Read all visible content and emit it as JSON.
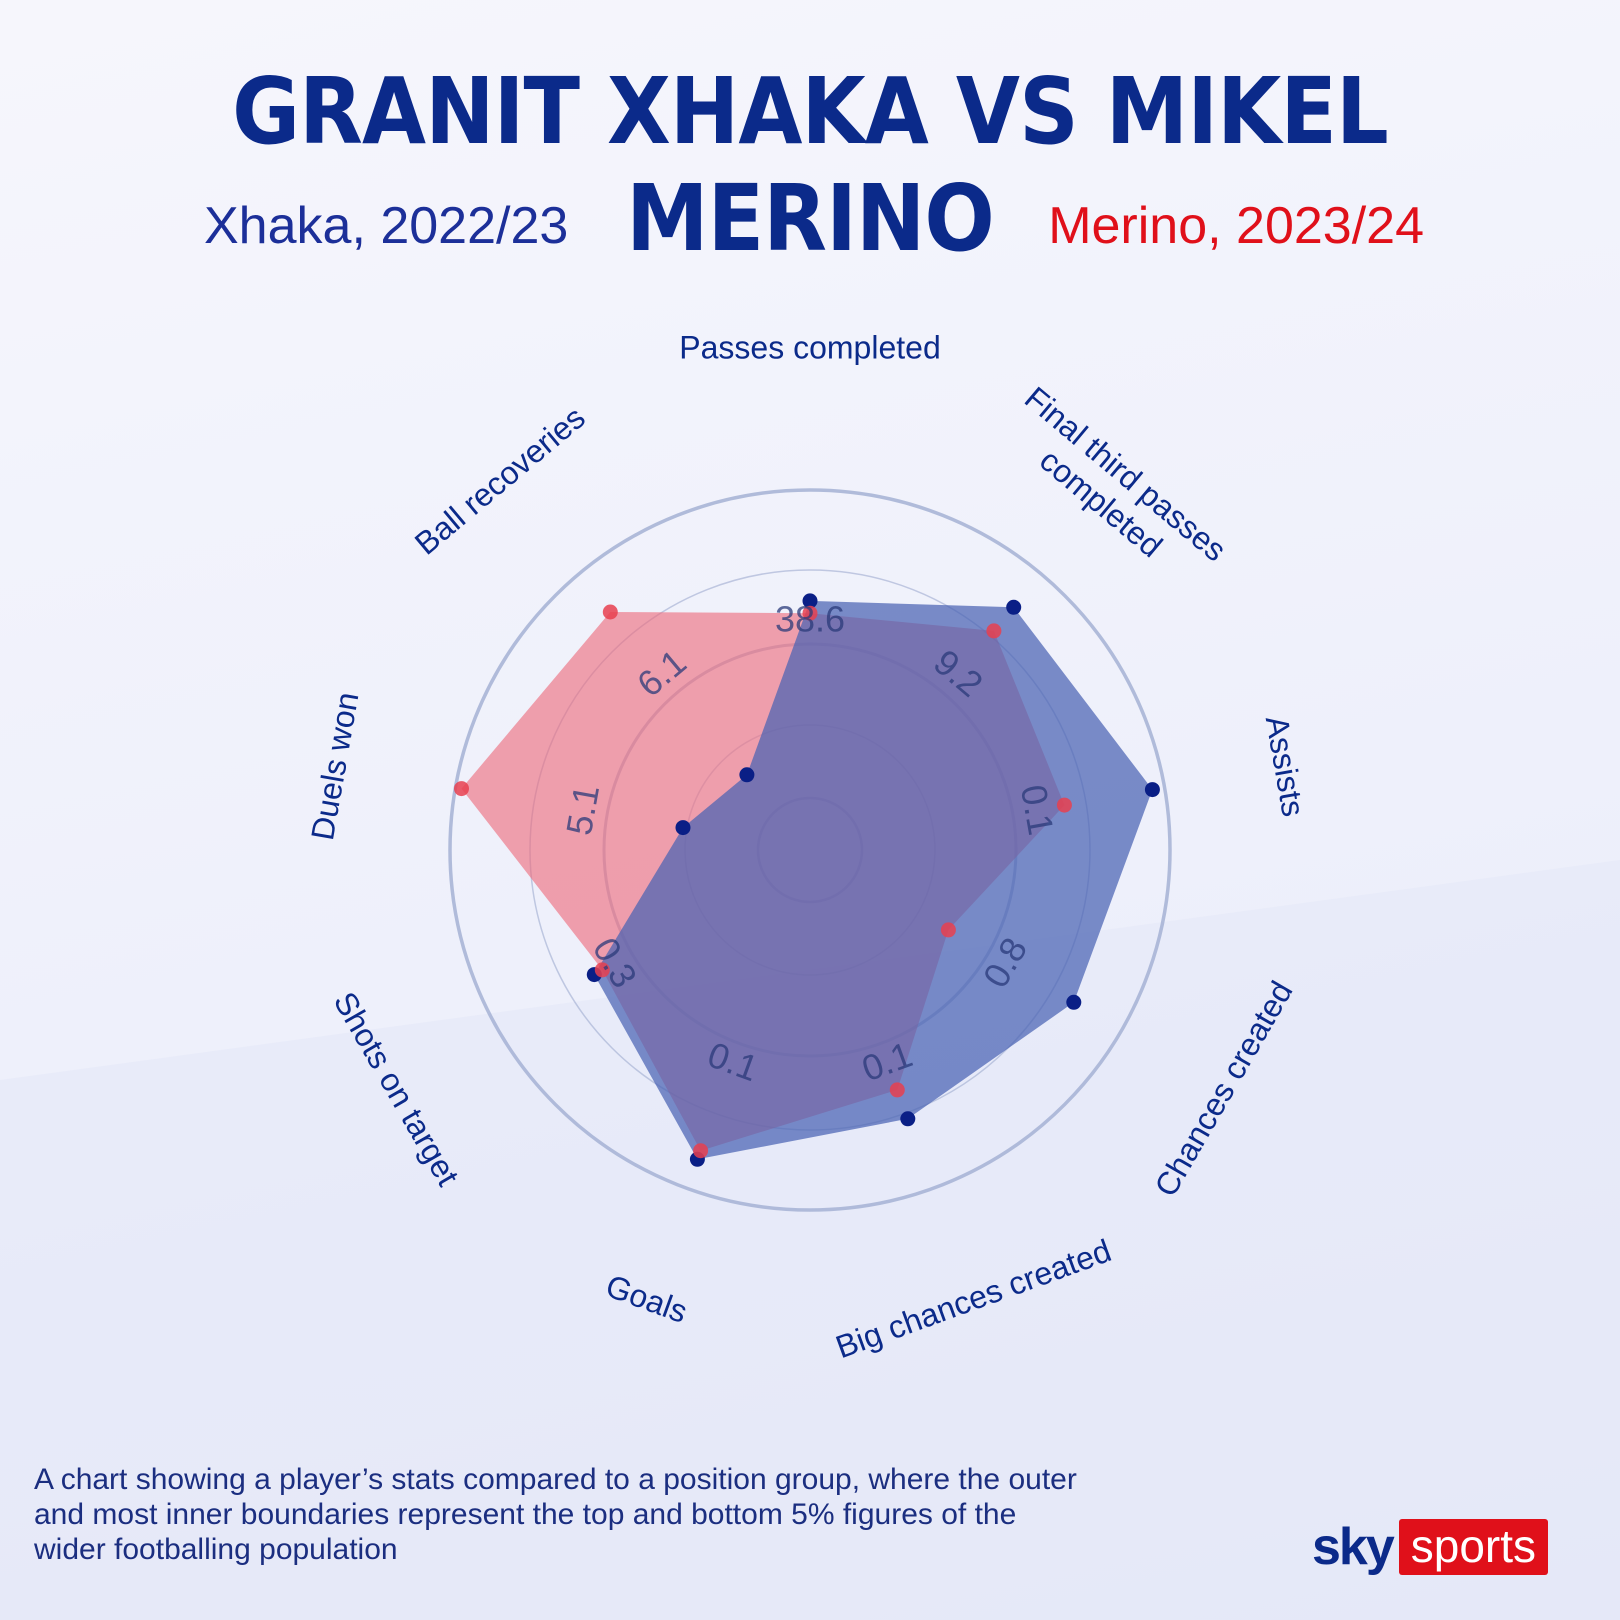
{
  "title": "GRANIT XHAKA VS MIKEL MERINO",
  "footnote": "A chart showing a player’s stats compared to a position group,  where the outer and most inner boundaries represent the top  and bottom 5% figures of the wider footballing population",
  "brand": {
    "sky": "sky",
    "sports": "sports"
  },
  "colors": {
    "title": "#0b2a8a",
    "xhaka": "#1c2f99",
    "merino": "#e0101a",
    "xhaka_fill": "#4a63b3",
    "merino_fill": "#ee6a7a",
    "grid": "#a9b5d6"
  },
  "chart_data": {
    "type": "radar",
    "scale": "percentile",
    "axes": [
      "Passes completed",
      "Final third passes completed",
      "Assists",
      "Chances created",
      "Big chances created",
      "Goals",
      "Shots on target",
      "Duels won",
      "Ball recoveries"
    ],
    "series": [
      {
        "name": "Xhaka, 2022/23",
        "color": "#1c2f99",
        "percentiles": [
          64,
          86,
          96,
          82,
          76,
          90,
          64,
          25,
          15
        ]
      },
      {
        "name": "Merino, 2023/24",
        "color": "#e0101a",
        "percentiles": [
          60,
          76,
          67,
          35,
          66,
          87,
          61,
          98,
          84
        ]
      }
    ],
    "value_labels": [
      "38.6",
      "9.2",
      "0.1",
      "0.8",
      "0.1",
      "0.1",
      "0.3",
      "5.1",
      "6.1"
    ],
    "grid": true,
    "legend_placement": "top"
  }
}
